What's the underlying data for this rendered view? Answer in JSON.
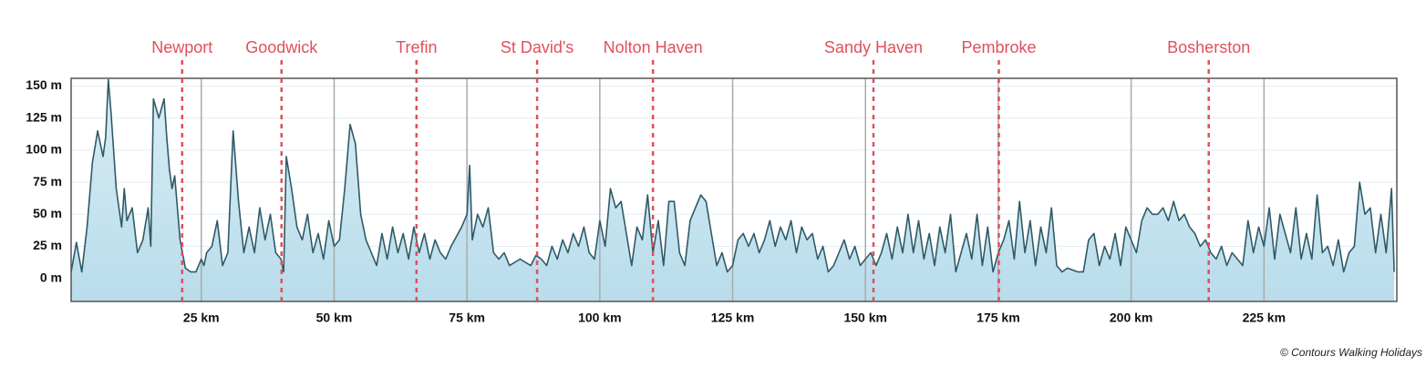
{
  "chart_data": {
    "type": "area",
    "credit": "© Contours Walking Holidays",
    "xlim": [
      0.5,
      250
    ],
    "ylim": [
      -18,
      156
    ],
    "xticks": [
      {
        "value": 25,
        "label": "25 km"
      },
      {
        "value": 50,
        "label": "50 km"
      },
      {
        "value": 75,
        "label": "75 km"
      },
      {
        "value": 100,
        "label": "100 km"
      },
      {
        "value": 125,
        "label": "125 km"
      },
      {
        "value": 150,
        "label": "150 km"
      },
      {
        "value": 175,
        "label": "175 km"
      },
      {
        "value": 200,
        "label": "200 km"
      },
      {
        "value": 225,
        "label": "225 km"
      }
    ],
    "yticks": [
      {
        "value": 0,
        "label": "0 m"
      },
      {
        "value": 25,
        "label": "25 m"
      },
      {
        "value": 50,
        "label": "50 m"
      },
      {
        "value": 75,
        "label": "75 m"
      },
      {
        "value": 100,
        "label": "100 m"
      },
      {
        "value": 125,
        "label": "125 m"
      },
      {
        "value": 150,
        "label": "150 m"
      }
    ],
    "grid": true,
    "markers": [
      {
        "name": "Newport",
        "x": 21.4
      },
      {
        "name": "Goodwick",
        "x": 40.1
      },
      {
        "name": "Trefin",
        "x": 65.5
      },
      {
        "name": "St David's",
        "x": 88.2
      },
      {
        "name": "Nolton Haven",
        "x": 110
      },
      {
        "name": "Sandy Haven",
        "x": 151.5
      },
      {
        "name": "Pembroke",
        "x": 175.1
      },
      {
        "name": "Bosherston",
        "x": 214.6
      }
    ],
    "marker_color": "#e0505a",
    "series": [
      {
        "color": "#2f5a66",
        "fill": "#b9dceb",
        "x": [
          0.5,
          1.5,
          2.5,
          3.5,
          4.5,
          5.5,
          6.5,
          7,
          7.5,
          8,
          9,
          10,
          10.5,
          11,
          12,
          13,
          14,
          15,
          15.5,
          16,
          17,
          18,
          18.5,
          19,
          19.5,
          20,
          21,
          22,
          23,
          24,
          25,
          25.5,
          26,
          27,
          28,
          29,
          30,
          31,
          32,
          33,
          34,
          35,
          36,
          37,
          38,
          39,
          40,
          40.5,
          41,
          42,
          43,
          44,
          45,
          46,
          47,
          48,
          49,
          50,
          51,
          52,
          53,
          54,
          55,
          56,
          57,
          58,
          59,
          60,
          61,
          62,
          63,
          64,
          65,
          66,
          67,
          68,
          69,
          70,
          71,
          72,
          74,
          75,
          75.5,
          76,
          77,
          78,
          79,
          80,
          81,
          82,
          83,
          85,
          87,
          88,
          89,
          90,
          91,
          92,
          93,
          94,
          95,
          96,
          97,
          98,
          99,
          100,
          101,
          102,
          103,
          104,
          105,
          106,
          107,
          108,
          109,
          110,
          111,
          112,
          113,
          114,
          115,
          116,
          117,
          118,
          119,
          120,
          121,
          122,
          123,
          124,
          125,
          126,
          127,
          128,
          129,
          130,
          131,
          132,
          133,
          134,
          135,
          136,
          137,
          138,
          139,
          140,
          141,
          142,
          143,
          144,
          145,
          146,
          147,
          148,
          149,
          150,
          151,
          152,
          153,
          154,
          155,
          156,
          157,
          158,
          159,
          160,
          161,
          162,
          163,
          164,
          165,
          166,
          167,
          168,
          169,
          170,
          171,
          172,
          173,
          174,
          175,
          176,
          177,
          178,
          179,
          180,
          181,
          182,
          183,
          184,
          185,
          186,
          187,
          188,
          190,
          191,
          192,
          193,
          194,
          195,
          196,
          197,
          198,
          199,
          200,
          201,
          202,
          203,
          204,
          205,
          206,
          207,
          208,
          209,
          210,
          211,
          212,
          213,
          214,
          215,
          216,
          217,
          218,
          219,
          220,
          221,
          222,
          223,
          224,
          225,
          226,
          227,
          228,
          229,
          230,
          231,
          232,
          233,
          234,
          235,
          236,
          237,
          238,
          239,
          240,
          241,
          242,
          243,
          244,
          245,
          246,
          247,
          248,
          249,
          249.5
        ],
        "values": [
          5,
          28,
          5,
          40,
          90,
          115,
          95,
          110,
          155,
          130,
          70,
          40,
          70,
          45,
          55,
          20,
          30,
          55,
          25,
          140,
          125,
          140,
          110,
          85,
          70,
          80,
          30,
          8,
          5,
          5,
          15,
          10,
          20,
          25,
          45,
          10,
          20,
          115,
          60,
          20,
          40,
          20,
          55,
          30,
          50,
          20,
          15,
          5,
          95,
          70,
          40,
          30,
          50,
          20,
          35,
          15,
          45,
          25,
          30,
          70,
          120,
          105,
          50,
          30,
          20,
          10,
          35,
          15,
          40,
          20,
          35,
          15,
          40,
          20,
          35,
          15,
          30,
          20,
          15,
          25,
          40,
          50,
          88,
          30,
          50,
          40,
          55,
          20,
          15,
          20,
          10,
          15,
          10,
          18,
          15,
          10,
          25,
          15,
          30,
          20,
          35,
          25,
          40,
          20,
          15,
          45,
          25,
          70,
          55,
          60,
          35,
          10,
          40,
          30,
          65,
          20,
          45,
          10,
          60,
          60,
          20,
          10,
          45,
          55,
          65,
          60,
          35,
          10,
          20,
          5,
          10,
          30,
          35,
          25,
          35,
          20,
          30,
          45,
          25,
          40,
          30,
          45,
          20,
          40,
          30,
          35,
          15,
          25,
          5,
          10,
          20,
          30,
          15,
          25,
          10,
          15,
          20,
          10,
          20,
          35,
          15,
          40,
          20,
          50,
          20,
          45,
          15,
          35,
          10,
          40,
          20,
          50,
          5,
          20,
          35,
          15,
          50,
          10,
          40,
          5,
          20,
          30,
          45,
          15,
          60,
          20,
          45,
          10,
          40,
          20,
          55,
          10,
          5,
          8,
          5,
          5,
          30,
          35,
          10,
          25,
          15,
          35,
          10,
          40,
          30,
          20,
          45,
          55,
          50,
          50,
          55,
          45,
          60,
          45,
          50,
          40,
          35,
          25,
          30,
          20,
          15,
          25,
          10,
          20,
          15,
          10,
          45,
          20,
          40,
          25,
          55,
          15,
          50,
          35,
          20,
          55,
          15,
          35,
          15,
          65,
          20,
          25,
          10,
          30,
          5,
          20,
          25,
          75,
          50,
          55,
          20,
          50,
          20,
          70,
          5
        ]
      }
    ]
  }
}
